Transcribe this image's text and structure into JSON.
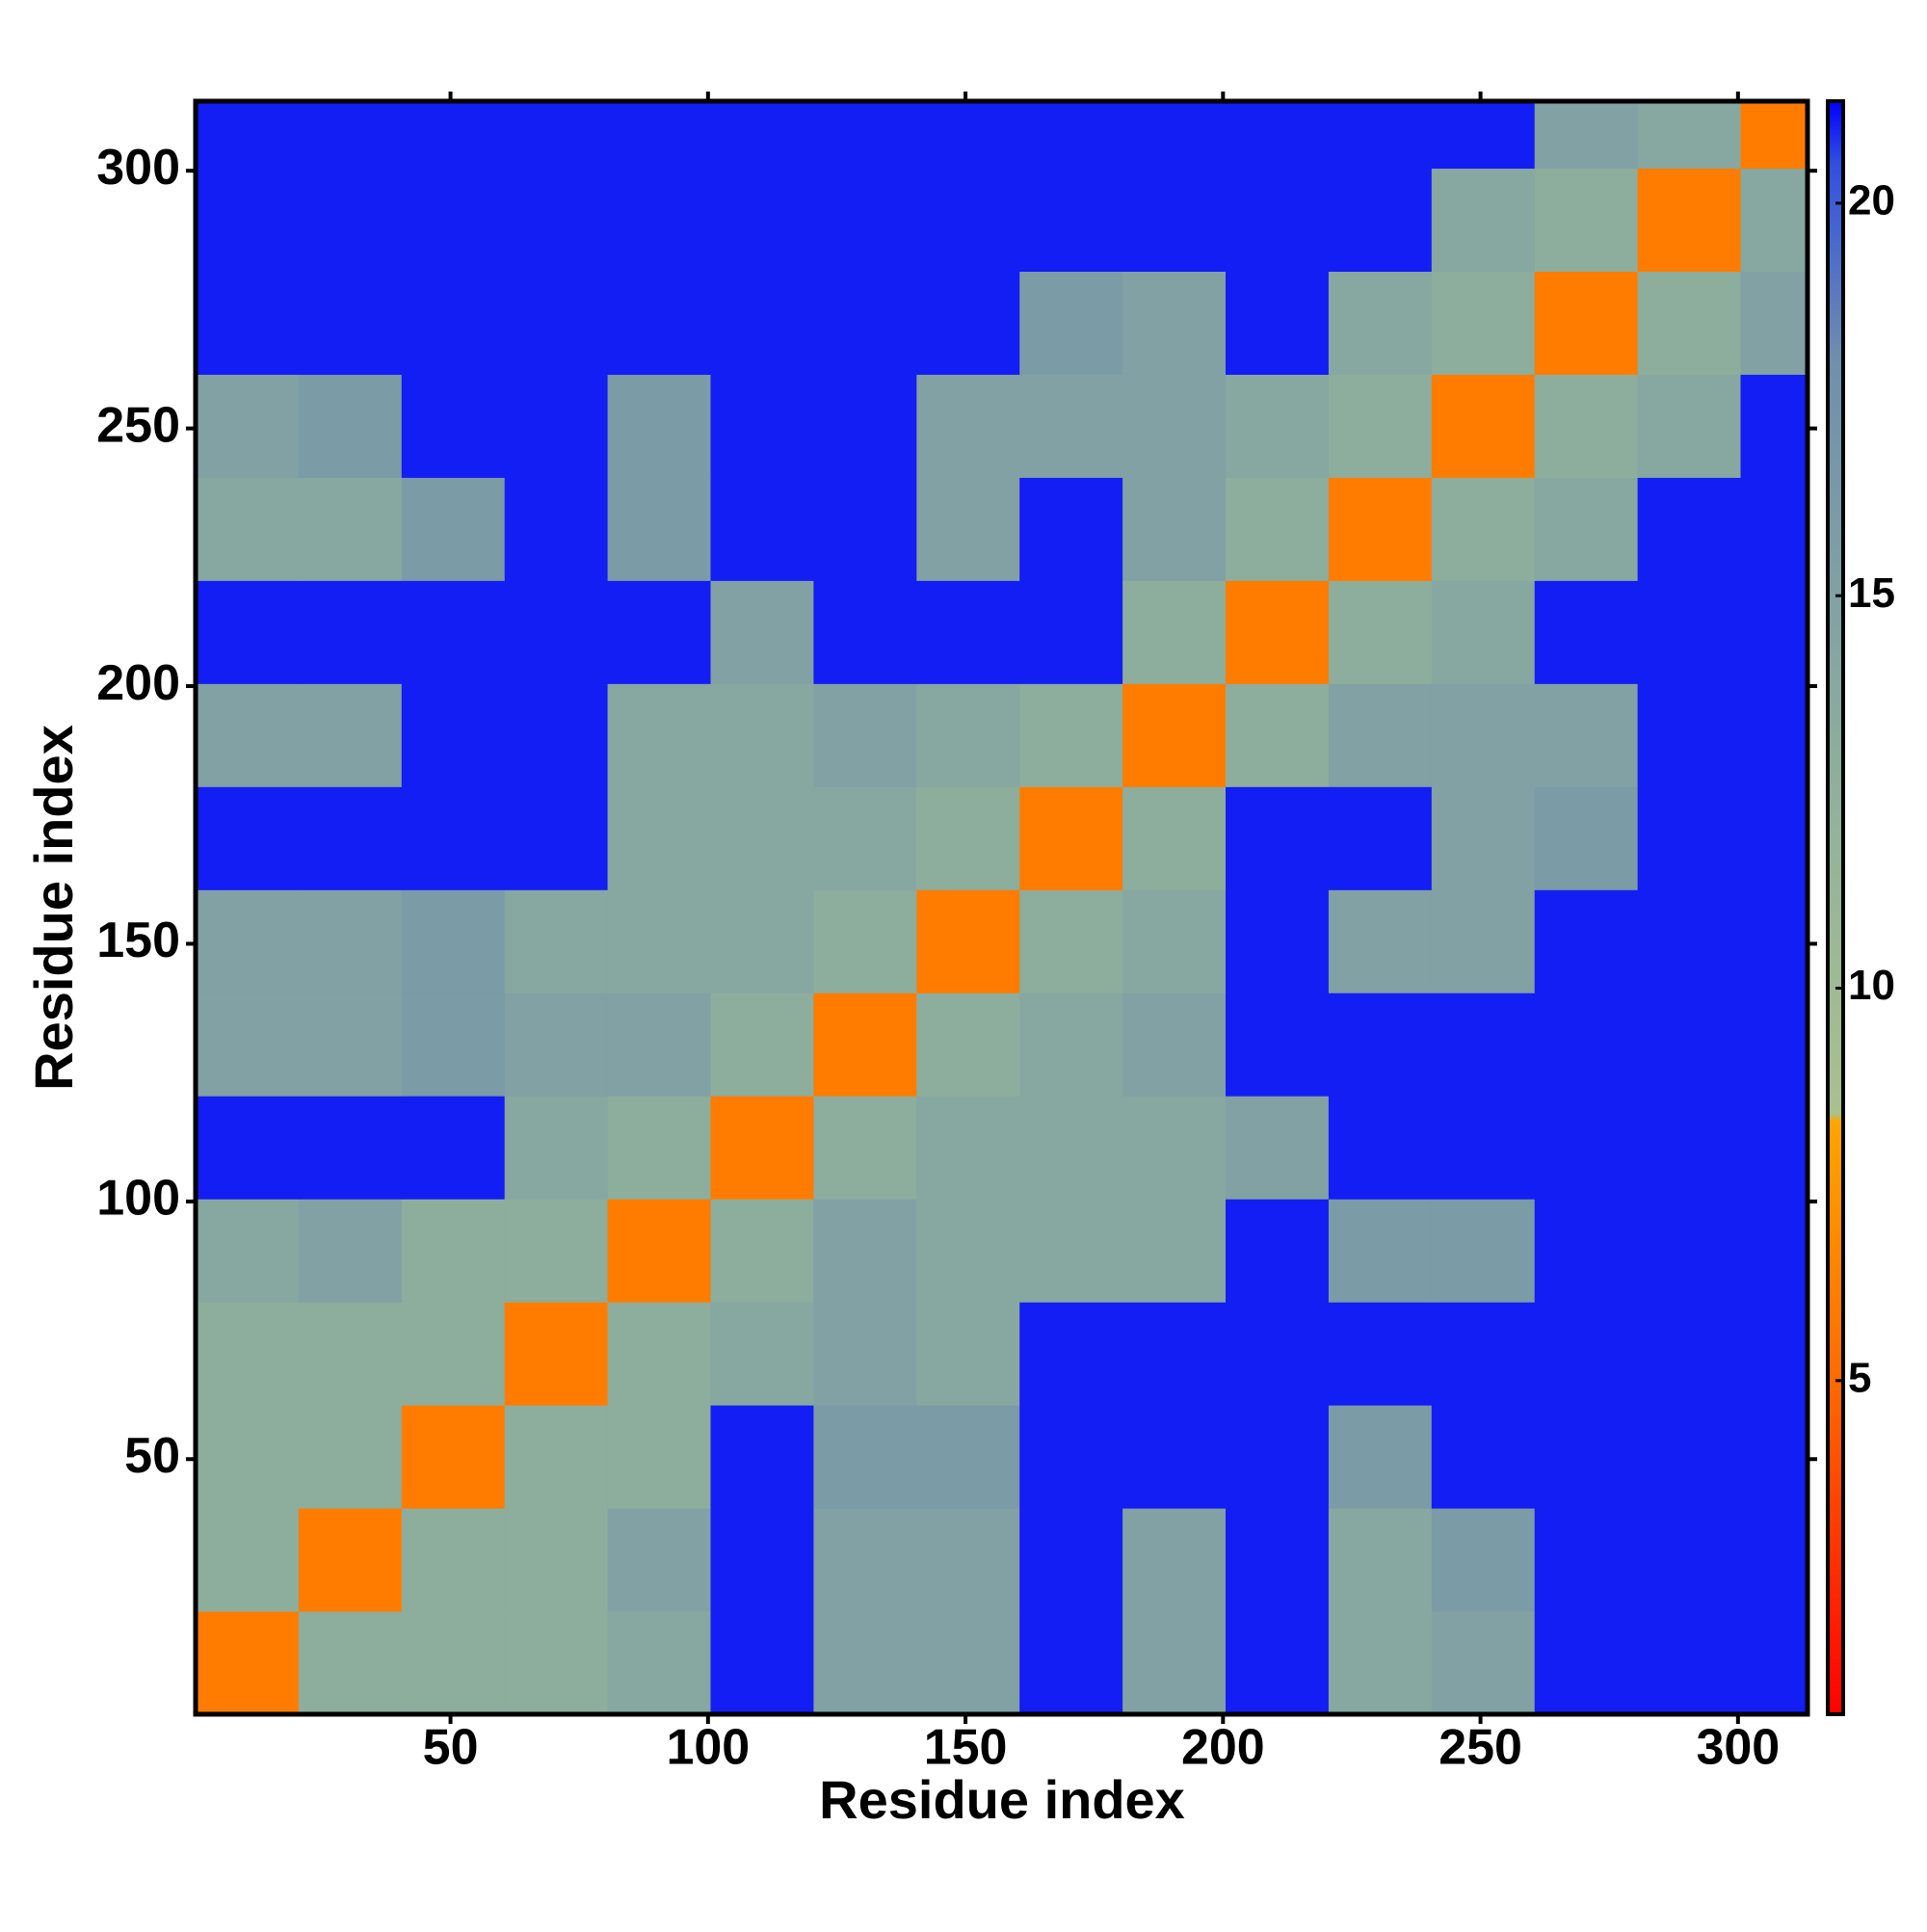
{
  "chart_data": {
    "type": "heatmap",
    "xlabel": "Residue index",
    "ylabel": "Residue index",
    "xbins": [
      0.5,
      20.5,
      40.5,
      60.5,
      80.5,
      100.5,
      120.5,
      140.5,
      160.5,
      180.5,
      200.5,
      220.5,
      240.5,
      260.5,
      280.5,
      300.5,
      313.5
    ],
    "ybins": [
      0.5,
      20.5,
      40.5,
      60.5,
      80.5,
      100.5,
      120.5,
      140.5,
      160.5,
      180.5,
      200.5,
      220.5,
      240.5,
      260.5,
      280.5,
      300.5,
      313.5
    ],
    "values": [
      [
        6,
        13,
        13,
        13,
        14,
        21,
        15,
        15,
        21,
        15,
        21,
        14,
        15,
        21,
        21,
        21
      ],
      [
        13,
        6,
        13,
        13,
        15,
        21,
        15,
        15,
        21,
        15,
        21,
        14,
        16,
        21,
        21,
        21
      ],
      [
        13,
        13,
        6,
        13,
        13,
        21,
        16,
        16,
        21,
        21,
        21,
        16,
        21,
        21,
        21,
        21
      ],
      [
        13,
        13,
        13,
        6,
        13,
        14,
        15,
        14,
        21,
        21,
        21,
        21,
        21,
        21,
        21,
        21
      ],
      [
        14,
        15,
        13,
        13,
        6,
        13,
        15,
        14,
        14,
        14,
        21,
        16,
        16,
        21,
        21,
        21
      ],
      [
        21,
        21,
        21,
        14,
        13,
        6,
        13,
        14,
        14,
        14,
        15,
        21,
        21,
        21,
        21,
        21
      ],
      [
        15,
        15,
        16,
        15,
        15,
        13,
        6,
        13,
        14,
        15,
        21,
        21,
        21,
        21,
        21,
        21
      ],
      [
        15,
        15,
        16,
        14,
        14,
        14,
        13,
        6,
        13,
        14,
        21,
        15,
        15,
        21,
        21,
        21
      ],
      [
        21,
        21,
        21,
        21,
        14,
        14,
        14,
        13,
        6,
        13,
        21,
        21,
        15,
        16,
        21,
        21
      ],
      [
        15,
        15,
        21,
        21,
        14,
        14,
        15,
        14,
        13,
        6,
        13,
        15,
        15,
        15,
        21,
        21
      ],
      [
        21,
        21,
        21,
        21,
        21,
        15,
        21,
        21,
        21,
        13,
        6,
        13,
        14,
        21,
        21,
        21
      ],
      [
        14,
        14,
        16,
        21,
        16,
        21,
        21,
        15,
        21,
        15,
        13,
        6,
        13,
        14,
        21,
        21
      ],
      [
        15,
        16,
        21,
        21,
        16,
        21,
        21,
        15,
        15,
        15,
        14,
        13,
        6,
        13,
        14,
        21
      ],
      [
        21,
        21,
        21,
        21,
        21,
        21,
        21,
        21,
        16,
        15,
        21,
        14,
        13,
        6,
        13,
        15
      ],
      [
        21,
        21,
        21,
        21,
        21,
        21,
        21,
        21,
        21,
        21,
        21,
        21,
        14,
        13,
        6,
        14
      ],
      [
        21,
        21,
        21,
        21,
        21,
        21,
        21,
        21,
        21,
        21,
        21,
        21,
        21,
        15,
        14,
        6
      ]
    ],
    "xlim": [
      0.5,
      313.5
    ],
    "ylim": [
      0.5,
      313.5
    ],
    "xticks": [
      50,
      100,
      150,
      200,
      250,
      300
    ],
    "yticks": [
      50,
      100,
      150,
      200,
      250,
      300
    ],
    "clim": [
      0.75,
      21.3
    ],
    "cticks": [
      5,
      10,
      15,
      20
    ],
    "colorscale": [
      [
        0.75,
        "#ff0000"
      ],
      [
        5,
        "#ff6a00"
      ],
      [
        8.3,
        "#ffa500"
      ],
      [
        8.4,
        "#a9c08f"
      ],
      [
        12,
        "#93b39a"
      ],
      [
        18,
        "#6f8fae"
      ],
      [
        20.5,
        "#3050e0"
      ],
      [
        21.3,
        "#0000ff"
      ]
    ]
  }
}
